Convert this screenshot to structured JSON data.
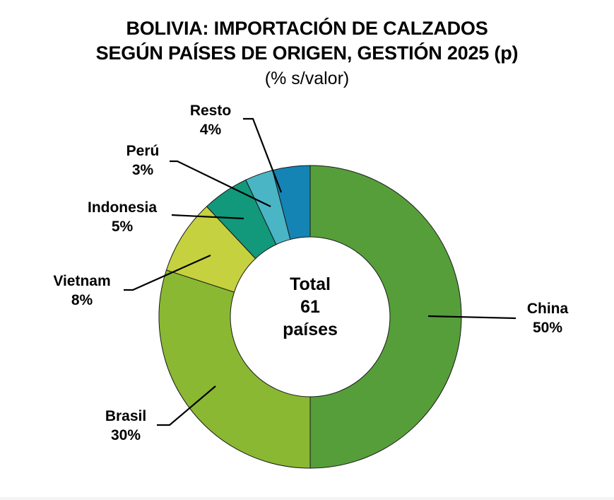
{
  "title": {
    "line1": "BOLIVIA: IMPORTACIÓN DE CALZADOS",
    "line2": "SEGÚN PAÍSES DE ORIGEN, GESTIÓN 2025 (p)",
    "subtitle": "(% s/valor)"
  },
  "center": {
    "line1": "Total",
    "line2": "61",
    "line3": "países"
  },
  "labels": {
    "china": {
      "name": "China",
      "pct": "50%"
    },
    "brasil": {
      "name": "Brasil",
      "pct": "30%"
    },
    "vietnam": {
      "name": "Vietnam",
      "pct": "8%"
    },
    "indonesia": {
      "name": "Indonesia",
      "pct": "5%"
    },
    "peru": {
      "name": "Perú",
      "pct": "3%"
    },
    "resto": {
      "name": "Resto",
      "pct": "4%"
    }
  },
  "chart_data": {
    "type": "pie",
    "subtype": "donut",
    "title": "BOLIVIA: IMPORTACIÓN DE CALZADOS SEGÚN PAÍSES DE ORIGEN, GESTIÓN 2025 (p)",
    "subtitle": "(% s/valor)",
    "center_label": "Total 61 países",
    "categories": [
      "China",
      "Brasil",
      "Vietnam",
      "Indonesia",
      "Perú",
      "Resto"
    ],
    "values": [
      50,
      30,
      8,
      5,
      3,
      4
    ],
    "unit": "%",
    "colors": [
      "#569E3A",
      "#8AB833",
      "#C5D13E",
      "#12987A",
      "#4AB5C5",
      "#1384B3"
    ],
    "start_angle": "12 o'clock",
    "direction": "clockwise",
    "legend": "none (leader-line data labels)"
  }
}
